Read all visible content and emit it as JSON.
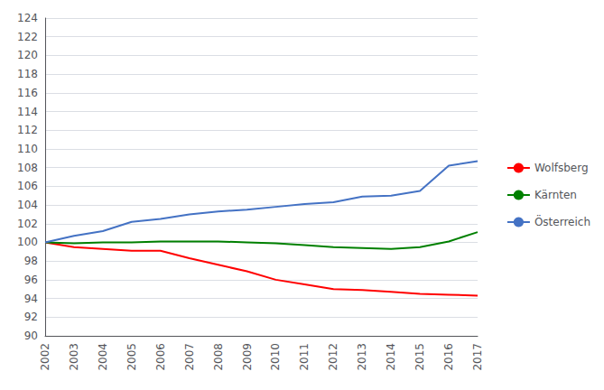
{
  "chart_data": {
    "type": "line",
    "categories": [
      "2002",
      "2003",
      "2004",
      "2005",
      "2006",
      "2007",
      "2008",
      "2009",
      "2010",
      "2011",
      "2012",
      "2013",
      "2014",
      "2015",
      "2016",
      "2017"
    ],
    "series": [
      {
        "name": "Wolfsberg",
        "color": "#ff0000",
        "values": [
          100.0,
          99.5,
          99.3,
          99.1,
          99.1,
          98.3,
          97.6,
          96.9,
          96.0,
          95.5,
          95.0,
          94.9,
          94.7,
          94.5,
          94.4,
          94.3
        ]
      },
      {
        "name": "Kärnten",
        "color": "#008000",
        "values": [
          100.0,
          99.9,
          100.0,
          100.0,
          100.1,
          100.1,
          100.1,
          100.0,
          99.9,
          99.7,
          99.5,
          99.4,
          99.3,
          99.5,
          100.1,
          101.1
        ]
      },
      {
        "name": "Österreich",
        "color": "#4472c4",
        "values": [
          100.0,
          100.7,
          101.2,
          102.2,
          102.5,
          103.0,
          103.3,
          103.5,
          103.8,
          104.1,
          104.3,
          104.9,
          105.0,
          105.5,
          108.2,
          108.7
        ]
      }
    ],
    "ylim": [
      90,
      124
    ],
    "yticks": [
      90,
      92,
      94,
      96,
      98,
      100,
      102,
      104,
      106,
      108,
      110,
      112,
      114,
      116,
      118,
      120,
      122,
      124
    ],
    "grid": true,
    "legend": "right"
  }
}
